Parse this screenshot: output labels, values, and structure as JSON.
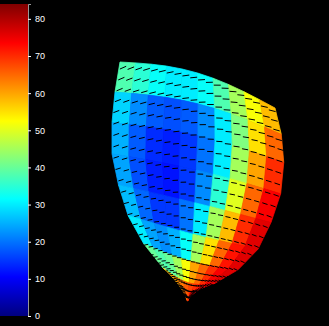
{
  "chart_data": {
    "type": "surface",
    "color_range": [
      0,
      84
    ],
    "color_ticks": [
      0,
      10,
      20,
      30,
      40,
      50,
      60,
      70,
      80
    ],
    "cells": [
      [
        38,
        35,
        32,
        30,
        30,
        32,
        38,
        45,
        52,
        58
      ],
      [
        28,
        22,
        18,
        17,
        18,
        22,
        30,
        42,
        55,
        65
      ],
      [
        25,
        18,
        14,
        13,
        15,
        20,
        30,
        45,
        60,
        70
      ],
      [
        24,
        17,
        13,
        12,
        15,
        22,
        35,
        50,
        65,
        74
      ],
      [
        26,
        19,
        15,
        15,
        20,
        30,
        45,
        58,
        70,
        76
      ],
      [
        30,
        24,
        22,
        25,
        32,
        45,
        55,
        65,
        72,
        76
      ],
      [
        40,
        38,
        40,
        45,
        52,
        60,
        65,
        70,
        74,
        76
      ],
      [
        58,
        60,
        62,
        64,
        66,
        68,
        70,
        72,
        74,
        75
      ]
    ]
  }
}
